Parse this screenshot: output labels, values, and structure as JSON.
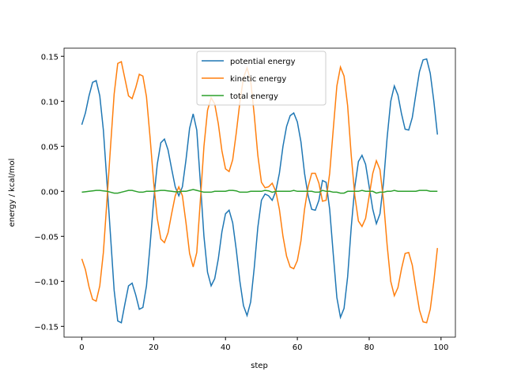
{
  "chart_data": {
    "type": "line",
    "xlabel": "step",
    "ylabel": "energy / kcal/mol",
    "x": [
      0,
      1,
      2,
      3,
      4,
      5,
      6,
      7,
      8,
      9,
      10,
      11,
      12,
      13,
      14,
      15,
      16,
      17,
      18,
      19,
      20,
      21,
      22,
      23,
      24,
      25,
      26,
      27,
      28,
      29,
      30,
      31,
      32,
      33,
      34,
      35,
      36,
      37,
      38,
      39,
      40,
      41,
      42,
      43,
      44,
      45,
      46,
      47,
      48,
      49,
      50,
      51,
      52,
      53,
      54,
      55,
      56,
      57,
      58,
      59,
      60,
      61,
      62,
      63,
      64,
      65,
      66,
      67,
      68,
      69,
      70,
      71,
      72,
      73,
      74,
      75,
      76,
      77,
      78,
      79,
      80,
      81,
      82,
      83,
      84,
      85,
      86,
      87,
      88,
      89,
      90,
      91,
      92,
      93,
      94,
      95,
      96,
      97,
      98,
      99
    ],
    "series": [
      {
        "name": "potential energy",
        "color": "#1f77b4",
        "values": [
          0.074,
          0.087,
          0.106,
          0.121,
          0.123,
          0.106,
          0.068,
          0.01,
          -0.05,
          -0.11,
          -0.144,
          -0.146,
          -0.125,
          -0.105,
          -0.102,
          -0.115,
          -0.131,
          -0.129,
          -0.105,
          -0.06,
          -0.01,
          0.03,
          0.054,
          0.058,
          0.046,
          0.025,
          0.005,
          -0.005,
          0.005,
          0.035,
          0.07,
          0.086,
          0.068,
          0.01,
          -0.05,
          -0.09,
          -0.105,
          -0.097,
          -0.075,
          -0.045,
          -0.025,
          -0.021,
          -0.035,
          -0.065,
          -0.1,
          -0.127,
          -0.138,
          -0.123,
          -0.085,
          -0.04,
          -0.01,
          -0.003,
          -0.005,
          -0.01,
          0.0,
          0.02,
          0.05,
          0.072,
          0.084,
          0.087,
          0.077,
          0.055,
          0.02,
          -0.005,
          -0.02,
          -0.021,
          -0.01,
          0.012,
          0.01,
          -0.02,
          -0.07,
          -0.118,
          -0.14,
          -0.13,
          -0.095,
          -0.04,
          0.005,
          0.033,
          0.04,
          0.03,
          0.005,
          -0.02,
          -0.036,
          -0.025,
          0.01,
          0.06,
          0.1,
          0.117,
          0.107,
          0.086,
          0.069,
          0.068,
          0.082,
          0.108,
          0.133,
          0.146,
          0.147,
          0.131,
          0.1,
          0.063
        ]
      },
      {
        "name": "kinetic energy",
        "color": "#ff7f0e",
        "values": [
          -0.075,
          -0.087,
          -0.106,
          -0.12,
          -0.122,
          -0.105,
          -0.068,
          -0.01,
          0.05,
          0.108,
          0.142,
          0.144,
          0.125,
          0.106,
          0.103,
          0.115,
          0.13,
          0.128,
          0.105,
          0.06,
          0.01,
          -0.03,
          -0.053,
          -0.057,
          -0.046,
          -0.025,
          -0.005,
          0.005,
          -0.005,
          -0.035,
          -0.069,
          -0.084,
          -0.068,
          -0.01,
          0.05,
          0.09,
          0.104,
          0.097,
          0.075,
          0.045,
          0.025,
          0.022,
          0.035,
          0.065,
          0.099,
          0.126,
          0.137,
          0.123,
          0.085,
          0.04,
          0.01,
          0.004,
          0.005,
          0.009,
          0.0,
          -0.02,
          -0.05,
          -0.072,
          -0.084,
          -0.086,
          -0.077,
          -0.055,
          -0.02,
          0.005,
          0.02,
          0.02,
          0.009,
          -0.011,
          -0.01,
          0.02,
          0.069,
          0.117,
          0.138,
          0.128,
          0.095,
          0.04,
          -0.005,
          -0.033,
          -0.039,
          -0.03,
          -0.005,
          0.02,
          0.034,
          0.024,
          -0.011,
          -0.06,
          -0.1,
          -0.116,
          -0.107,
          -0.086,
          -0.069,
          -0.068,
          -0.082,
          -0.108,
          -0.132,
          -0.145,
          -0.146,
          -0.131,
          -0.1,
          -0.063
        ]
      },
      {
        "name": "total energy",
        "color": "#2ca02c",
        "values": [
          -0.001,
          -0.0005,
          0,
          0.0005,
          0.001,
          0.001,
          0.0005,
          0,
          -0.001,
          -0.002,
          -0.002,
          -0.001,
          0,
          0.001,
          0.001,
          0,
          -0.001,
          -0.001,
          0,
          0,
          0,
          0.0005,
          0.001,
          0.001,
          0.0005,
          0,
          -0.0005,
          -0.0005,
          0,
          0,
          0.001,
          0.002,
          0.001,
          0,
          -0.001,
          -0.001,
          -0.001,
          0,
          0,
          0,
          0,
          0.001,
          0.001,
          0.0005,
          -0.001,
          -0.001,
          -0.001,
          0,
          0,
          0,
          0,
          0.001,
          0.0005,
          -0.001,
          0,
          0,
          0,
          0,
          0,
          0.001,
          0,
          0,
          0,
          0,
          0,
          -0.001,
          -0.001,
          0.001,
          0,
          0,
          -0.001,
          -0.001,
          -0.002,
          -0.002,
          0,
          0,
          0,
          0,
          0.001,
          0,
          0,
          0,
          -0.002,
          -0.001,
          -0.001,
          0,
          0,
          0.001,
          0,
          0,
          0,
          0,
          0,
          0,
          0.001,
          0.001,
          0.001,
          0,
          0,
          0
        ]
      }
    ],
    "xlim": [
      -4.95,
      104
    ],
    "xticks": [
      0,
      20,
      40,
      60,
      80,
      100
    ],
    "ylim": [
      -0.162,
      0.159
    ],
    "yticks": [
      {
        "value": -0.15,
        "label": "−0.15"
      },
      {
        "value": -0.1,
        "label": "−0.10"
      },
      {
        "value": -0.05,
        "label": "−0.05"
      },
      {
        "value": 0,
        "label": "0.00"
      },
      {
        "value": 0.05,
        "label": "0.05"
      },
      {
        "value": 0.1,
        "label": "0.10"
      },
      0.15
    ],
    "legend": "upper center"
  }
}
